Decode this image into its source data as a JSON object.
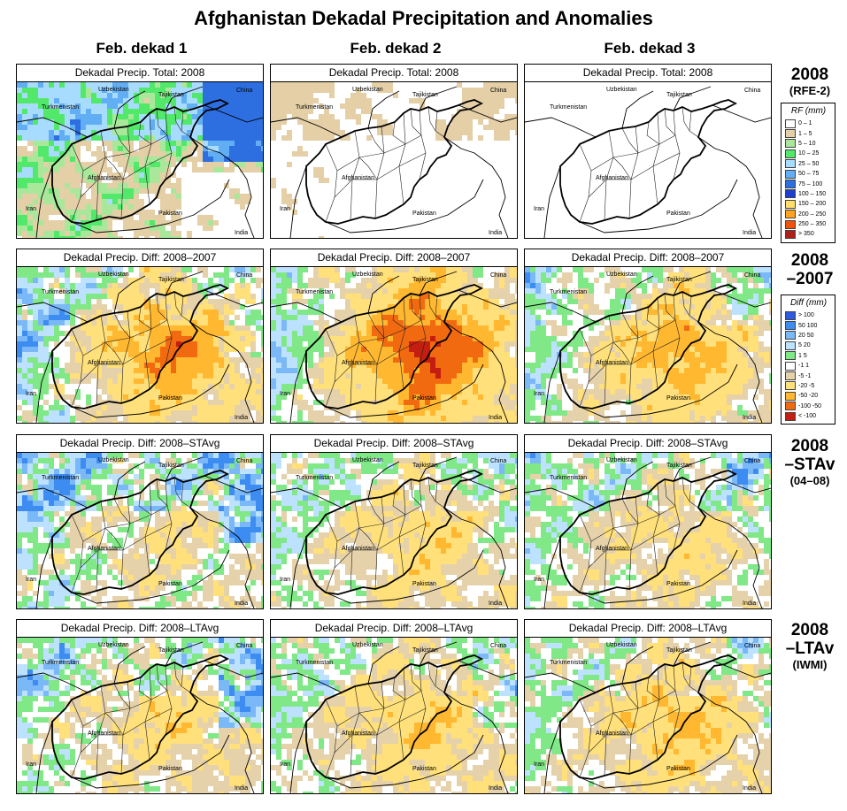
{
  "title": "Afghanistan Dekadal Precipitation and Anomalies",
  "columns": [
    "Feb. dekad 1",
    "Feb. dekad 2",
    "Feb. dekad 3"
  ],
  "rows": [
    {
      "head": "2008",
      "sub": "(RFE-2)",
      "panel_title": "Dekadal Precip. Total: 2008",
      "scheme": "rf"
    },
    {
      "head": "2008",
      "sub": "–2007",
      "panel_title": "Dekadal Precip. Diff:  2008–2007",
      "scheme": "diff",
      "sub_big": true
    },
    {
      "head": "2008",
      "sub": "–STAv",
      "sub2": "(04–08)",
      "panel_title": "Dekadal Precip. Diff:  2008–STAvg",
      "scheme": "diff",
      "sub_big": true
    },
    {
      "head": "2008",
      "sub": "–LTAv",
      "sub2": "(IWMI)",
      "panel_title": "Dekadal Precip. Diff:  2008–LTAvg",
      "scheme": "diff",
      "sub_big": true
    }
  ],
  "map_labels": {
    "uzbekistan": "Uzbekistan",
    "tajikistan": "Tajikistan",
    "china": "China",
    "turkmenistan": "Turkmenistan",
    "afghanistan": "Afghanistan",
    "iran": "Iran",
    "pakistan": "Pakistan",
    "india": "India"
  },
  "legend_rf": {
    "title": "RF (mm)",
    "items": [
      {
        "label": "0 – 1",
        "color": "#ffffff"
      },
      {
        "label": "1 – 5",
        "color": "#e4cfa6"
      },
      {
        "label": "5 – 10",
        "color": "#a9e89b"
      },
      {
        "label": "10 – 25",
        "color": "#52e86a"
      },
      {
        "label": "25 – 50",
        "color": "#a8dcff"
      },
      {
        "label": "50 – 75",
        "color": "#62aef5"
      },
      {
        "label": "75 – 100",
        "color": "#2d6fe0"
      },
      {
        "label": "100 – 150",
        "color": "#1c3fd0"
      },
      {
        "label": "150 – 200",
        "color": "#ffdf6a"
      },
      {
        "label": "200 – 250",
        "color": "#ffa21c"
      },
      {
        "label": "250 – 350",
        "color": "#f0520a"
      },
      {
        "label": "> 350",
        "color": "#b0201a"
      }
    ]
  },
  "legend_diff": {
    "title": "Diff (mm)",
    "items": [
      {
        "label": "> 100",
        "color": "#2d5ae0"
      },
      {
        "label": "50  100",
        "color": "#3c8cf2"
      },
      {
        "label": "20  50",
        "color": "#7ab8f7"
      },
      {
        "label": "5  20",
        "color": "#bde2ff"
      },
      {
        "label": "1  5",
        "color": "#80e886"
      },
      {
        "label": "-1  1",
        "color": "#ffffff"
      },
      {
        "label": "-5  -1",
        "color": "#e6d2aa"
      },
      {
        "label": "-20  -5",
        "color": "#ffe07a"
      },
      {
        "label": "-50  -20",
        "color": "#ffb830"
      },
      {
        "label": "-100  -50",
        "color": "#f26a10"
      },
      {
        "label": "< -100",
        "color": "#c41e10"
      }
    ]
  },
  "panels": [
    [
      {
        "wet": 0.78,
        "east": 0.85,
        "west": 0.55
      },
      {
        "wet": 0.22,
        "east": 0.05,
        "west": 0.4
      },
      {
        "wet": 0.1,
        "east": 0.0,
        "west": 0.45
      }
    ],
    [
      {
        "wet": 0.35,
        "east": 0.2,
        "west": 0.3,
        "hot": 0.55
      },
      {
        "wet": 0.15,
        "east": 0.05,
        "west": 0.15,
        "hot": 0.75
      },
      {
        "wet": 0.3,
        "east": 0.15,
        "west": 0.1,
        "hot": 0.45
      }
    ],
    [
      {
        "wet": 0.55,
        "east": 0.6,
        "west": 0.3,
        "hot": 0.15
      },
      {
        "wet": 0.3,
        "east": 0.25,
        "west": 0.1,
        "hot": 0.25
      },
      {
        "wet": 0.35,
        "east": 0.3,
        "west": 0.1,
        "hot": 0.2
      }
    ],
    [
      {
        "wet": 0.4,
        "east": 0.55,
        "west": 0.1,
        "hot": 0.25
      },
      {
        "wet": 0.25,
        "east": 0.3,
        "west": 0.05,
        "hot": 0.3
      },
      {
        "wet": 0.25,
        "east": 0.2,
        "west": 0.05,
        "hot": 0.35
      }
    ]
  ]
}
